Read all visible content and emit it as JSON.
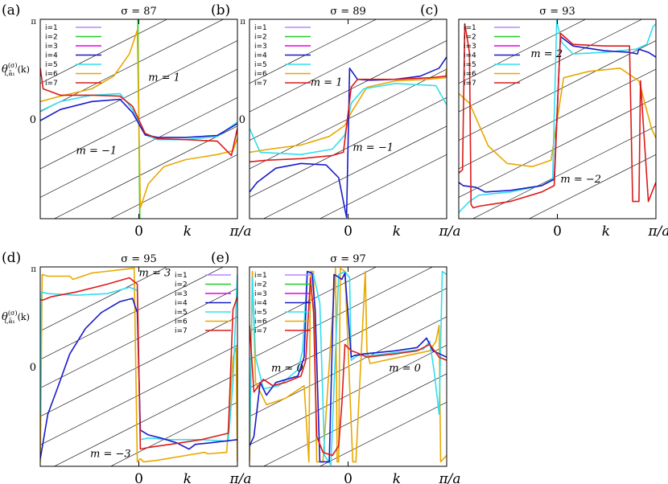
{
  "figure": {
    "ylabel_theta": "θ",
    "ylabel_sup": "(σ)",
    "ylabel_sub": "i,ā₁",
    "ylabel_k": "(k)"
  },
  "chart_data": [
    {
      "type": "line",
      "panel_label": "(a)",
      "title": "σ = 87",
      "xlabel": "k",
      "xtick_labels": [
        "0",
        "π/a"
      ],
      "ytick_labels": [
        "π",
        "0"
      ],
      "xlim": [
        -3.14159,
        3.14159
      ],
      "ylim": [
        -3.14159,
        3.14159
      ],
      "legend": [
        "i=1",
        "i=2",
        "i=3",
        "i=4",
        "i=5",
        "i=6",
        "i=7"
      ],
      "annotations": [
        {
          "text": "m = 1",
          "x": 0.3,
          "y": 1.2
        },
        {
          "text": "m = −1",
          "x": -2.0,
          "y": -1.1
        }
      ],
      "series": [
        {
          "name": "i=2",
          "color": "#22cc22",
          "x": [
            -0.03,
            0.03
          ],
          "y": [
            3.14,
            -3.14
          ]
        },
        {
          "name": "i=6",
          "color": "#e8a800",
          "x": [
            -3.14,
            -2.5,
            -1.5,
            -0.8,
            -0.3,
            -0.05,
            0.05,
            0.3,
            0.8,
            1.5,
            2.5,
            3.0,
            3.14
          ],
          "y": [
            0.55,
            0.72,
            0.95,
            1.35,
            2.05,
            2.8,
            -2.8,
            -2.05,
            -1.5,
            -1.28,
            -1.12,
            -1.0,
            -0.6
          ]
        },
        {
          "name": "i=5",
          "color": "#33ddee",
          "x": [
            -3.14,
            -2.5,
            -1.5,
            -0.6,
            -0.2,
            0.2,
            0.6,
            1.5,
            2.5,
            3.14
          ],
          "y": [
            0.25,
            0.55,
            0.75,
            0.8,
            0.3,
            -0.5,
            -0.65,
            -0.65,
            -0.55,
            -0.1
          ]
        },
        {
          "name": "i=4",
          "color": "#1a1acc",
          "x": [
            -3.14,
            -2.5,
            -1.5,
            -0.6,
            -0.2,
            0.2,
            0.6,
            1.5,
            2.5,
            3.14
          ],
          "y": [
            -0.05,
            0.3,
            0.55,
            0.62,
            0.2,
            -0.5,
            -0.58,
            -0.58,
            -0.52,
            -0.15
          ]
        },
        {
          "name": "i=7",
          "color": "#dd1a1a",
          "x": [
            -3.14,
            -3.05,
            -2.5,
            -1.5,
            -0.6,
            -0.2,
            0.2,
            0.6,
            1.5,
            2.5,
            2.95,
            3.14
          ],
          "y": [
            1.6,
            0.95,
            0.75,
            0.75,
            0.72,
            0.4,
            -0.45,
            -0.62,
            -0.65,
            -0.7,
            -1.15,
            -0.3
          ]
        }
      ]
    },
    {
      "type": "line",
      "panel_label": "(b)",
      "title": "σ = 89",
      "xlabel": "k",
      "xtick_labels": [
        "0",
        "π/a"
      ],
      "ytick_labels": [
        "π",
        "0"
      ],
      "xlim": [
        -3.14159,
        3.14159
      ],
      "ylim": [
        -3.14159,
        3.14159
      ],
      "legend": [
        "i=1",
        "i=2",
        "i=3",
        "i=4",
        "i=5",
        "i=6",
        "i=7"
      ],
      "annotations": [
        {
          "text": "m = 1",
          "x": -1.2,
          "y": 1.05
        },
        {
          "text": "m = −1",
          "x": 0.15,
          "y": -1.0
        }
      ],
      "series": [
        {
          "name": "i=6",
          "color": "#e8a800",
          "x": [
            -3.14,
            -2.5,
            -1.5,
            -0.6,
            -0.1,
            0.1,
            0.6,
            1.5,
            2.5,
            3.1,
            3.14
          ],
          "y": [
            -1.05,
            -0.95,
            -0.82,
            -0.55,
            -0.2,
            0.2,
            1.0,
            1.2,
            1.25,
            1.3,
            1.6
          ]
        },
        {
          "name": "i=5",
          "color": "#33ddee",
          "x": [
            -3.14,
            -2.8,
            -1.5,
            -0.5,
            -0.1,
            0.1,
            0.5,
            1.5,
            2.8,
            3.14
          ],
          "y": [
            -0.3,
            -1.05,
            -1.12,
            -0.95,
            -0.5,
            0.5,
            0.95,
            1.12,
            1.05,
            0.45
          ]
        },
        {
          "name": "i=4",
          "color": "#1a1acc",
          "x": [
            -3.14,
            -2.9,
            -2.3,
            -1.5,
            -0.7,
            -0.3,
            -0.05,
            0.05,
            0.3,
            0.7,
            1.5,
            2.3,
            2.9,
            3.14
          ],
          "y": [
            -2.3,
            -2.0,
            -1.55,
            -1.4,
            -1.45,
            -1.85,
            -3.1,
            1.6,
            1.25,
            1.22,
            1.25,
            1.35,
            1.6,
            1.95
          ]
        },
        {
          "name": "i=7",
          "color": "#dd1a1a",
          "x": [
            -3.14,
            -2.6,
            -1.5,
            -0.5,
            -0.15,
            0.1,
            0.3,
            1.5,
            2.6,
            3.14
          ],
          "y": [
            -1.35,
            -1.3,
            -1.25,
            -1.15,
            -1.05,
            1.0,
            1.25,
            1.25,
            1.3,
            1.35
          ]
        }
      ]
    },
    {
      "type": "line",
      "panel_label": "(c)",
      "title": "σ = 93",
      "xlabel": "k",
      "xtick_labels": [
        "0",
        "π/a"
      ],
      "ytick_labels": [],
      "xlim": [
        -3.14159,
        3.14159
      ],
      "ylim": [
        -3.14159,
        3.14159
      ],
      "legend": [
        "i=1",
        "i=2",
        "i=3",
        "i=4",
        "i=5",
        "i=6",
        "i=7"
      ],
      "annotations": [
        {
          "text": "m = 2",
          "x": -0.85,
          "y": 1.95
        },
        {
          "text": "m = −2",
          "x": 0.1,
          "y": -2.0
        }
      ],
      "series": [
        {
          "name": "i=6",
          "color": "#e8a800",
          "x": [
            -3.14,
            -2.8,
            -2.2,
            -1.6,
            -0.8,
            -0.2,
            0.2,
            1.0,
            2.0,
            2.6,
            3.0,
            3.14
          ],
          "y": [
            0.8,
            0.5,
            -0.85,
            -1.4,
            -1.5,
            -1.3,
            1.3,
            1.5,
            1.6,
            1.2,
            -0.3,
            -0.6
          ]
        },
        {
          "name": "i=5",
          "color": "#33ddee",
          "x": [
            -3.14,
            -3.05,
            -2.8,
            -2.5,
            -1.5,
            -0.5,
            -0.15,
            -0.02,
            0.02,
            0.15,
            0.5,
            1.5,
            2.5,
            2.85,
            3.05,
            3.14
          ],
          "y": [
            -2.95,
            -2.85,
            -2.6,
            -2.4,
            -2.3,
            -2.1,
            -1.9,
            3.1,
            2.9,
            2.4,
            2.05,
            2.1,
            2.2,
            2.35,
            2.9,
            3.0
          ]
        },
        {
          "name": "i=4",
          "color": "#1a1acc",
          "x": [
            -3.14,
            -3.0,
            -2.6,
            -2.3,
            -1.5,
            -0.5,
            -0.1,
            0.1,
            0.5,
            1.5,
            2.3,
            2.55,
            2.6,
            2.9,
            3.14
          ],
          "y": [
            -2.0,
            -2.1,
            -2.15,
            -2.3,
            -2.25,
            -2.1,
            -1.9,
            2.6,
            2.3,
            2.15,
            2.1,
            2.05,
            2.2,
            2.1,
            1.95
          ]
        },
        {
          "name": "i=7",
          "color": "#dd1a1a",
          "x": [
            -3.14,
            -3.02,
            -2.95,
            -2.8,
            -2.75,
            -2.68,
            -2.5,
            -1.5,
            -0.5,
            -0.1,
            0.1,
            0.5,
            1.5,
            2.3,
            2.4,
            2.6,
            2.65,
            2.9,
            3.14
          ],
          "y": [
            -1.7,
            -1.6,
            3.0,
            2.1,
            -2.7,
            -2.8,
            -2.75,
            -2.6,
            -2.3,
            -2.1,
            2.7,
            2.35,
            2.3,
            2.3,
            -2.6,
            -2.6,
            1.2,
            -2.6,
            -2.0
          ]
        }
      ]
    },
    {
      "type": "line",
      "panel_label": "(d)",
      "title": "σ = 95",
      "xlabel": "k",
      "xtick_labels": [
        "0",
        "π/a"
      ],
      "ytick_labels": [
        "π",
        "0"
      ],
      "xlim": [
        -3.14159,
        3.14159
      ],
      "ylim": [
        -3.14159,
        3.14159
      ],
      "legend": [
        "i=1",
        "i=2",
        "i=3",
        "i=4",
        "i=5",
        "i=6",
        "i=7"
      ],
      "annotations": [
        {
          "text": "m = 3",
          "x": 0.0,
          "y": 2.85
        },
        {
          "text": "m = −3",
          "x": -1.55,
          "y": -2.85
        }
      ],
      "series": [
        {
          "name": "i=6",
          "color": "#e8a800",
          "x": [
            -3.14,
            -3.08,
            -2.9,
            -2.2,
            -2.1,
            -1.5,
            -0.6,
            -0.15,
            -0.05,
            0.05,
            0.15,
            0.6,
            1.5,
            2.1,
            2.2,
            2.8,
            3.0,
            3.1,
            3.14
          ],
          "y": [
            -3.0,
            2.9,
            2.85,
            2.85,
            2.75,
            2.95,
            3.05,
            3.1,
            -3.0,
            -2.9,
            -3.0,
            -2.95,
            -2.8,
            -2.7,
            -2.75,
            -2.7,
            0.3,
            0.6,
            -3.0
          ]
        },
        {
          "name": "i=5",
          "color": "#33ddee",
          "x": [
            -3.14,
            -3.1,
            -2.9,
            -2.0,
            -1.0,
            -0.3,
            -0.05,
            0.05,
            0.3,
            1.0,
            2.0,
            2.85,
            3.0,
            3.14
          ],
          "y": [
            -1.5,
            2.35,
            2.3,
            2.25,
            2.3,
            2.5,
            2.4,
            -2.3,
            -2.25,
            -2.3,
            -2.3,
            -2.35,
            -0.5,
            2.9
          ]
        },
        {
          "name": "i=4",
          "color": "#1a1acc",
          "x": [
            -3.14,
            -2.9,
            -2.6,
            -2.2,
            -1.7,
            -1.2,
            -0.6,
            -0.2,
            -0.05,
            0.05,
            0.3,
            0.7,
            1.2,
            1.6,
            1.8,
            2.3,
            3.14
          ],
          "y": [
            -2.9,
            -1.5,
            -0.7,
            0.4,
            1.2,
            1.7,
            2.05,
            2.15,
            1.7,
            -2.0,
            -2.15,
            -2.25,
            -2.4,
            -2.6,
            -2.45,
            -2.4,
            -2.3
          ]
        },
        {
          "name": "i=7",
          "color": "#dd1a1a",
          "x": [
            -3.14,
            -3.05,
            -2.8,
            -2.0,
            -1.0,
            -0.3,
            -0.05,
            0.05,
            0.3,
            1.0,
            2.0,
            2.85,
            3.0,
            3.14
          ],
          "y": [
            2.1,
            2.1,
            2.2,
            2.35,
            2.6,
            2.8,
            2.6,
            -2.6,
            -2.55,
            -2.45,
            -2.3,
            -2.1,
            1.8,
            2.2
          ]
        }
      ]
    },
    {
      "type": "line",
      "panel_label": "(e)",
      "title": "σ = 97",
      "xlabel": "k",
      "xtick_labels": [
        "0",
        "π/a"
      ],
      "ytick_labels": [],
      "xlim": [
        -3.14159,
        3.14159
      ],
      "ylim": [
        -3.14159,
        3.14159
      ],
      "legend": [
        "i=1",
        "i=2",
        "i=3",
        "i=4",
        "i=5",
        "i=6",
        "i=7"
      ],
      "annotations": [
        {
          "text": "m = 0",
          "x": -2.45,
          "y": -0.15
        },
        {
          "text": "m = 0",
          "x": 1.3,
          "y": -0.15
        }
      ],
      "series": [
        {
          "name": "i=6",
          "color": "#e8a800",
          "x": [
            -3.14,
            -3.05,
            -2.95,
            -2.6,
            -2.0,
            -1.4,
            -1.25,
            -1.2,
            -1.1,
            -1.0,
            -0.8,
            -0.4,
            -0.35,
            -0.3,
            -0.25,
            -0.1,
            0.15,
            0.25,
            0.55,
            0.6,
            0.7,
            2.6,
            2.8,
            2.9,
            2.95,
            3.14
          ],
          "y": [
            -3.0,
            3.0,
            -0.5,
            -1.2,
            -1.0,
            -0.6,
            -3.0,
            3.0,
            3.0,
            -3.0,
            -3.0,
            3.1,
            -3.0,
            -3.0,
            3.1,
            3.0,
            -3.0,
            -3.0,
            3.0,
            0.5,
            0.1,
            0.5,
            0.8,
            1.3,
            -3.0,
            -2.8
          ]
        },
        {
          "name": "i=5",
          "color": "#33ddee",
          "x": [
            -3.14,
            -3.05,
            -2.95,
            -2.7,
            -2.2,
            -1.6,
            -1.45,
            -1.3,
            -1.1,
            -0.9,
            -0.75,
            -0.55,
            -0.3,
            -0.1,
            0.05,
            0.1,
            0.3,
            0.7,
            1.6,
            2.4,
            2.6,
            2.75,
            2.9,
            3.0,
            3.14
          ],
          "y": [
            -2.5,
            2.8,
            0.3,
            -0.7,
            -0.6,
            -0.1,
            0.5,
            3.0,
            2.9,
            2.0,
            -2.8,
            -3.1,
            2.9,
            3.0,
            2.8,
            0.2,
            0.35,
            0.35,
            0.45,
            0.55,
            0.8,
            -0.2,
            -1.5,
            3.0,
            2.9
          ]
        },
        {
          "name": "i=4",
          "color": "#1a1acc",
          "x": [
            -3.14,
            -3.0,
            -2.8,
            -2.6,
            -2.3,
            -1.6,
            -1.4,
            -1.3,
            -1.15,
            -1.05,
            -0.9,
            -0.6,
            -0.45,
            -0.35,
            -0.2,
            -0.1,
            0.1,
            0.2,
            0.5,
            1.5,
            2.2,
            2.5,
            2.7,
            3.14
          ],
          "y": [
            -2.5,
            -2.2,
            -0.5,
            -0.9,
            -0.5,
            -0.3,
            0.3,
            3.0,
            2.95,
            1.8,
            -3.0,
            -3.0,
            2.9,
            2.85,
            2.75,
            2.95,
            0.3,
            0.35,
            0.4,
            0.5,
            0.6,
            0.9,
            0.5,
            0.3
          ]
        },
        {
          "name": "i=7",
          "color": "#dd1a1a",
          "x": [
            -3.14,
            -3.0,
            -2.7,
            -2.4,
            -2.0,
            -1.5,
            -1.35,
            -1.2,
            -1.1,
            -1.0,
            -0.8,
            -0.5,
            -0.3,
            -0.2,
            -0.1,
            0.1,
            0.25,
            0.6,
            1.5,
            2.2,
            2.6,
            2.9,
            3.14
          ],
          "y": [
            1.3,
            -0.8,
            -0.4,
            -0.6,
            -0.5,
            -0.3,
            0.2,
            2.8,
            1.7,
            -2.2,
            -2.7,
            -2.8,
            -2.5,
            -1.2,
            0.7,
            0.5,
            0.45,
            0.3,
            0.4,
            0.5,
            0.7,
            0.3,
            0.2
          ]
        }
      ]
    }
  ]
}
